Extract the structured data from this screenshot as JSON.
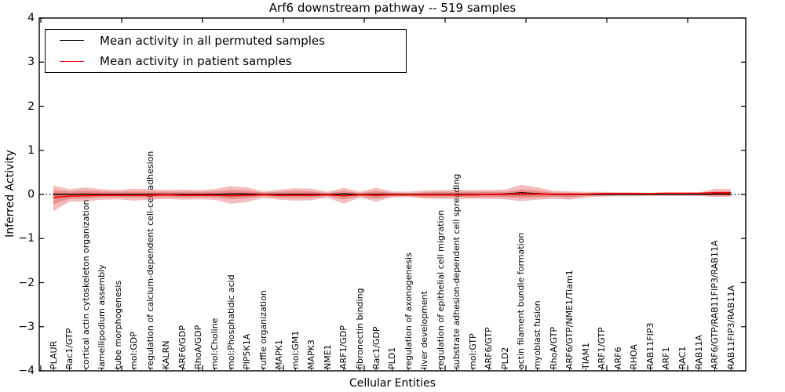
{
  "chart_data": {
    "type": "area",
    "title": "Arf6 downstream pathway -- 519 samples",
    "xlabel": "Cellular Entities",
    "ylabel": "Inferred Activity",
    "ylim": [
      -4,
      4
    ],
    "ytick_values": [
      4,
      3,
      2,
      1,
      0,
      -1,
      -2,
      -3,
      -4
    ],
    "ytick_labels": [
      "4",
      "3",
      "2",
      "1",
      "0",
      "−1",
      "−2",
      "−3",
      "−4"
    ],
    "grid": false,
    "legend_position": "upper left",
    "zero_line_style": "dotted",
    "categories": [
      "PLAUR",
      "Rac1/GTP",
      "cortical actin cytoskeleton organization",
      "lamellipodium assembly",
      "tube morphogenesis",
      "mol:GDP",
      "regulation of calcium-dependent cell-cell adhesion",
      "KALRN",
      "ARF6/GDP",
      "RhoA/GDP",
      "mol:Choline",
      "mol:Phosphatidic acid",
      "PIP5K1A",
      "ruffle organization",
      "MAPK1",
      "mol:GM1",
      "MAPK3",
      "NME1",
      "ARF1/GDP",
      "fibronectin binding",
      "Rac1/GDP",
      "PLD1",
      "regulation of axonogenesis",
      "liver development",
      "regulation of epithelial cell migration",
      "substrate adhesion-dependent cell spreading",
      "mol:GTP",
      "ARF6/GTP",
      "PLD2",
      "actin filament bundle formation",
      "myoblast fusion",
      "RhoA/GTP",
      "ARF6/GTP/NME1/Tiam1",
      "TIAM1",
      "ARF1/GTP",
      "ARF6",
      "RHOA",
      "RAB11FIP3",
      "ARF1",
      "RAC1",
      "RAB11A",
      "ARF6/GTP/RAB11FIP3/RAB11A",
      "RAB11FIP3/RAB11A"
    ],
    "series": [
      {
        "name": "Mean activity in all permuted samples",
        "color": "#000000",
        "values": [
          0,
          0,
          0,
          0,
          0,
          0,
          0,
          0,
          0,
          0,
          0,
          0.01,
          0.01,
          0,
          0,
          0,
          0,
          0,
          0.01,
          0,
          0,
          0,
          0,
          0,
          0,
          0,
          0,
          0,
          0.01,
          0.04,
          0.02,
          0,
          0,
          0,
          0,
          0,
          0,
          0,
          0,
          0,
          0,
          0.01,
          0.01
        ]
      },
      {
        "name": "Mean activity in patient samples",
        "color": "#ff0000",
        "values": [
          -0.07,
          -0.04,
          -0.03,
          -0.02,
          -0.02,
          -0.02,
          -0.02,
          -0.01,
          -0.02,
          -0.02,
          -0.02,
          -0.03,
          -0.02,
          -0.01,
          -0.02,
          -0.02,
          -0.02,
          -0.01,
          -0.03,
          -0.01,
          -0.02,
          -0.01,
          -0.01,
          -0.01,
          -0.01,
          -0.01,
          -0.01,
          0,
          0,
          0.02,
          0.01,
          0.01,
          0.01,
          0.01,
          0.02,
          0.02,
          0.02,
          0.02,
          0.03,
          0.03,
          0.03,
          0.04,
          0.04
        ]
      }
    ],
    "bands": {
      "color": "#dd3333",
      "alpha": 0.33,
      "core_scale": 0.45,
      "outer_upper": [
        0.2,
        0.12,
        0.16,
        0.12,
        0.1,
        0.13,
        0.12,
        0.1,
        0.11,
        0.1,
        0.12,
        0.19,
        0.16,
        0.07,
        0.11,
        0.14,
        0.13,
        0.06,
        0.15,
        0.06,
        0.15,
        0.07,
        0.06,
        0.09,
        0.1,
        0.1,
        0.1,
        0.1,
        0.11,
        0.22,
        0.16,
        0.08,
        0.07,
        0.06,
        0.06,
        0.05,
        0.05,
        0.04,
        0.04,
        0.04,
        0.04,
        0.13,
        0.12
      ],
      "outer_lower": [
        -0.38,
        -0.16,
        -0.16,
        -0.12,
        -0.11,
        -0.14,
        -0.12,
        -0.1,
        -0.12,
        -0.11,
        -0.12,
        -0.21,
        -0.17,
        -0.08,
        -0.12,
        -0.14,
        -0.13,
        -0.07,
        -0.21,
        -0.07,
        -0.16,
        -0.07,
        -0.06,
        -0.1,
        -0.1,
        -0.1,
        -0.1,
        -0.1,
        -0.11,
        -0.15,
        -0.12,
        -0.1,
        -0.12,
        -0.07,
        -0.05,
        -0.04,
        -0.04,
        -0.03,
        -0.03,
        -0.03,
        -0.03,
        -0.06,
        -0.05
      ],
      "inner_upper": [
        0.1,
        0.07,
        0.09,
        0.07,
        0.06,
        0.07,
        0.07,
        0.06,
        0.06,
        0.06,
        0.07,
        0.1,
        0.09,
        0.04,
        0.06,
        0.08,
        0.07,
        0.03,
        0.08,
        0.03,
        0.08,
        0.04,
        0.03,
        0.05,
        0.06,
        0.06,
        0.06,
        0.06,
        0.06,
        0.11,
        0.09,
        0.04,
        0.04,
        0.03,
        0.03,
        0.03,
        0.03,
        0.02,
        0.02,
        0.02,
        0.02,
        0.07,
        0.07
      ],
      "inner_lower": [
        -0.22,
        -0.1,
        -0.09,
        -0.07,
        -0.06,
        -0.08,
        -0.07,
        -0.06,
        -0.07,
        -0.06,
        -0.07,
        -0.11,
        -0.09,
        -0.04,
        -0.07,
        -0.08,
        -0.07,
        -0.04,
        -0.11,
        -0.04,
        -0.09,
        -0.04,
        -0.03,
        -0.06,
        -0.06,
        -0.06,
        -0.06,
        -0.06,
        -0.06,
        -0.08,
        -0.07,
        -0.05,
        -0.07,
        -0.04,
        -0.03,
        -0.02,
        -0.02,
        -0.02,
        -0.02,
        -0.02,
        -0.02,
        -0.03,
        -0.03
      ]
    }
  }
}
